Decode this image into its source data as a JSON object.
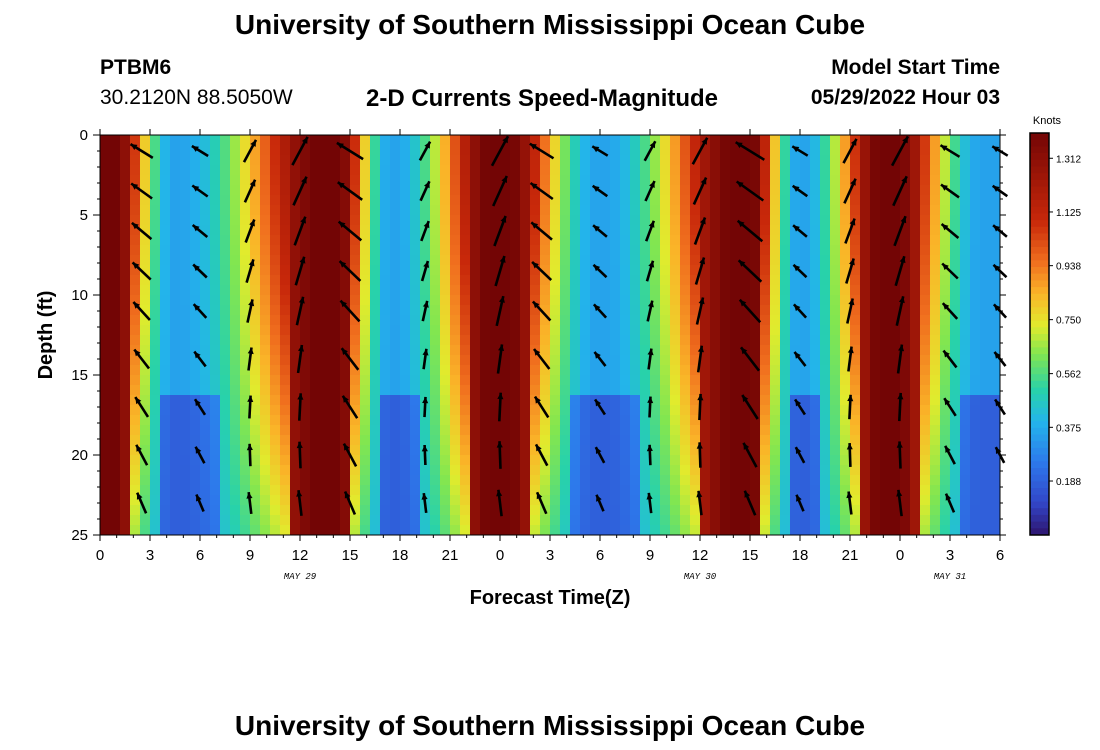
{
  "header": {
    "title": "University of Southern Mississippi Ocean Cube",
    "station_id": "PTBM6",
    "coordinates": "30.2120N  88.5050W",
    "plot_title": "2-D Currents Speed-Magnitude",
    "model_start_label": "Model Start Time",
    "model_start_value": "05/29/2022 Hour 03"
  },
  "footer": {
    "title": "University of Southern Mississippi Ocean Cube"
  },
  "chart_data": {
    "type": "heatmap",
    "xlabel": "Forecast Time(Z)",
    "ylabel": "Depth (ft)",
    "x_tick_labels": [
      "0",
      "3",
      "6",
      "9",
      "12",
      "15",
      "18",
      "21",
      "0",
      "3",
      "6",
      "9",
      "12",
      "15",
      "18",
      "21",
      "0",
      "3",
      "6"
    ],
    "date_labels": [
      {
        "label": "MAY 29",
        "at_hours_from_start": 12
      },
      {
        "label": "MAY 30",
        "at_hours_from_start": 36
      },
      {
        "label": "MAY 31",
        "at_hours_from_start": 51
      }
    ],
    "x_range_hours": [
      0,
      54
    ],
    "y_ticks": [
      0,
      5,
      10,
      15,
      20,
      25
    ],
    "ylim": [
      0,
      25
    ],
    "y_inverted": true,
    "colorbar": {
      "title": "Knots",
      "tick_labels": [
        "1.312",
        "1.125",
        "0.938",
        "0.750",
        "0.562",
        "0.375",
        "0.188"
      ],
      "range": [
        0,
        1.4
      ]
    },
    "speed_peaks_hours": [
      0.6,
      14.0,
      24.0,
      38.8,
      47.3
    ],
    "speed_troughs_hours": [
      4.5,
      17.5,
      30.0,
      42.0,
      53.0
    ],
    "arrow_times_hours": [
      2.5,
      6,
      9,
      12,
      15,
      19.5,
      24,
      26.5,
      30,
      33,
      36,
      39,
      42,
      45,
      48,
      51,
      54
    ],
    "arrow_depths_ft": [
      1,
      3.5,
      6,
      8.5,
      11,
      14,
      17,
      20,
      23
    ]
  }
}
